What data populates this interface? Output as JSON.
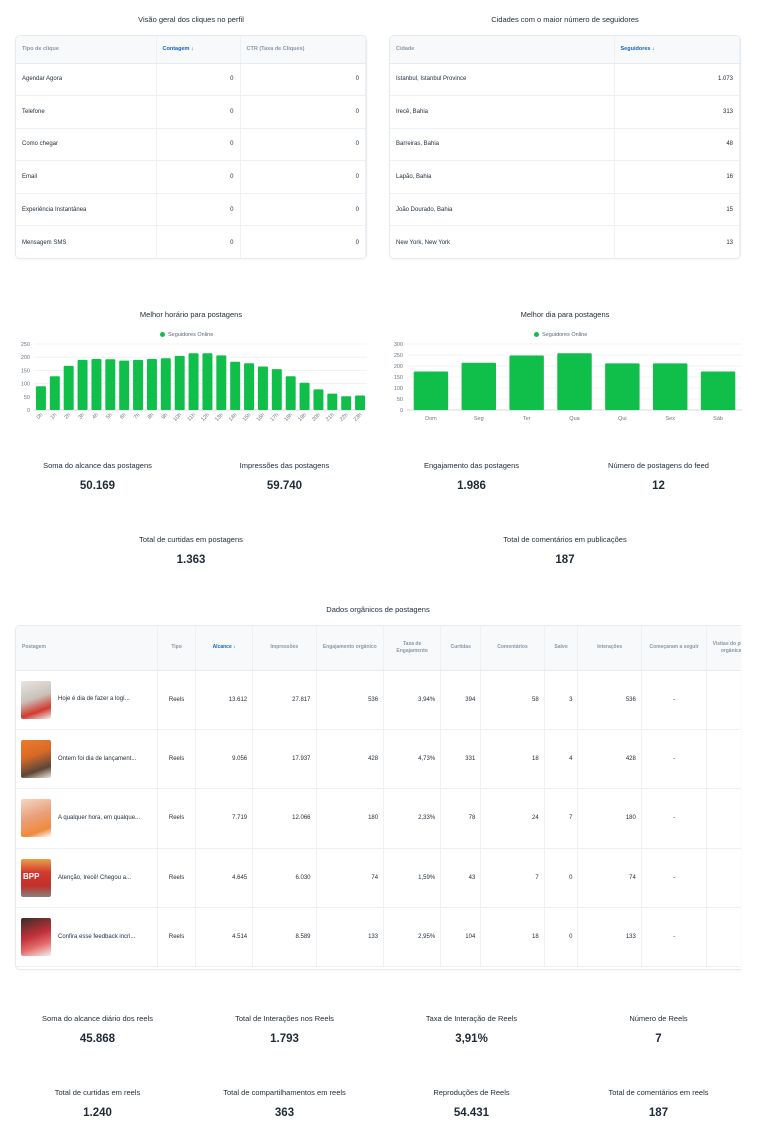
{
  "clicks": {
    "title": "Visão geral dos cliques no perfil",
    "columns": [
      "Tipo de clique",
      "Contagem ↓",
      "CTR (Taxa de Cliques)"
    ],
    "rows": [
      [
        "Agendar Agora",
        "0",
        "0"
      ],
      [
        "Telefone",
        "0",
        "0"
      ],
      [
        "Como chegar",
        "0",
        "0"
      ],
      [
        "Email",
        "0",
        "0"
      ],
      [
        "Experiência Instantânea",
        "0",
        "0"
      ],
      [
        "Mensagem SMS",
        "0",
        "0"
      ]
    ]
  },
  "cities": {
    "title": "Cidades com o maior número de seguidores",
    "columns": [
      "Cidade",
      "Seguidores ↓"
    ],
    "rows": [
      [
        "Istanbul, Istanbul Province",
        "1.073"
      ],
      [
        "Irecê, Bahia",
        "313"
      ],
      [
        "Barreiras, Bahia",
        "48"
      ],
      [
        "Lapão, Bahia",
        "16"
      ],
      [
        "João Dourado, Bahia",
        "15"
      ],
      [
        "New York, New York",
        "13"
      ]
    ]
  },
  "chart_data": [
    {
      "type": "bar",
      "title": "Melhor horário para postagens",
      "legend": "Seguidores Online",
      "color": "#0fbf49",
      "categories": [
        "0h",
        "1h",
        "2h",
        "3h",
        "4h",
        "5h",
        "6h",
        "7h",
        "8h",
        "9h",
        "10h",
        "11h",
        "12h",
        "13h",
        "14h",
        "15h",
        "16h",
        "17h",
        "18h",
        "19h",
        "20h",
        "21h",
        "22h",
        "23h"
      ],
      "values": [
        90,
        128,
        167,
        190,
        193,
        192,
        187,
        190,
        193,
        196,
        205,
        215,
        215,
        207,
        183,
        177,
        165,
        155,
        128,
        103,
        78,
        62,
        52,
        55
      ],
      "yticks": [
        0,
        50,
        100,
        150,
        200,
        250
      ],
      "ylim": [
        0,
        250
      ]
    },
    {
      "type": "bar",
      "title": "Melhor dia para postagens",
      "legend": "Seguidores Online",
      "color": "#0fbf49",
      "categories": [
        "Dom",
        "Seg",
        "Ter",
        "Qua",
        "Qui",
        "Sex",
        "Sáb"
      ],
      "values": [
        175,
        215,
        248,
        258,
        212,
        212,
        175
      ],
      "yticks": [
        0,
        50,
        100,
        150,
        200,
        250,
        300
      ],
      "ylim": [
        0,
        300
      ]
    }
  ],
  "metrics_row1": [
    {
      "label": "Soma do alcance das postagens",
      "value": "50.169"
    },
    {
      "label": "Impressões das postagens",
      "value": "59.740"
    },
    {
      "label": "Engajamento das postagens",
      "value": "1.986"
    },
    {
      "label": "Número de postagens do feed",
      "value": "12"
    }
  ],
  "metrics_row2": [
    {
      "label": "Total de curtidas em postagens",
      "value": "1.363"
    },
    {
      "label": "Total de comentários em publicações",
      "value": "187"
    }
  ],
  "posts": {
    "title": "Dados orgânicos de postagens",
    "columns": [
      "Postagem",
      "Tipo",
      "Alcance ↓",
      "Impressões",
      "Engajamento orgânico",
      "Taxa de Engajamento",
      "Curtidas",
      "Comentários",
      "Salvo",
      "Interações",
      "Começaram a seguir",
      "Visitas do perfil orgânica"
    ],
    "rows": [
      {
        "text": "Hoje é dia de fazer a logí...",
        "tipo": "Reels",
        "alcance": "13.612",
        "impressoes": "27.817",
        "engajamento": "536",
        "taxa": "3,94%",
        "curtidas": "394",
        "comentarios": "58",
        "salvo": "3",
        "interacoes": "536",
        "seguir": "-",
        "visitas": ""
      },
      {
        "text": "Ontem foi dia de lançament...",
        "tipo": "Reels",
        "alcance": "9.056",
        "impressoes": "17.937",
        "engajamento": "428",
        "taxa": "4,73%",
        "curtidas": "331",
        "comentarios": "18",
        "salvo": "4",
        "interacoes": "428",
        "seguir": "-",
        "visitas": ""
      },
      {
        "text": "A qualquer hora, em qualque...",
        "tipo": "Reels",
        "alcance": "7.719",
        "impressoes": "12.066",
        "engajamento": "180",
        "taxa": "2,33%",
        "curtidas": "78",
        "comentarios": "24",
        "salvo": "7",
        "interacoes": "180",
        "seguir": "-",
        "visitas": ""
      },
      {
        "text": "Atenção, Irecê! Chegou a...",
        "tipo": "Reels",
        "alcance": "4.645",
        "impressoes": "6.030",
        "engajamento": "74",
        "taxa": "1,59%",
        "curtidas": "43",
        "comentarios": "7",
        "salvo": "0",
        "interacoes": "74",
        "seguir": "-",
        "visitas": ""
      },
      {
        "text": "Confira esse feedback incri...",
        "tipo": "Reels",
        "alcance": "4.514",
        "impressoes": "8.589",
        "engajamento": "133",
        "taxa": "2,95%",
        "curtidas": "104",
        "comentarios": "18",
        "salvo": "0",
        "interacoes": "133",
        "seguir": "-",
        "visitas": ""
      }
    ],
    "thumb_texts": [
      "",
      "",
      "",
      "BPP",
      ""
    ]
  },
  "metrics_row3": [
    {
      "label": "Soma do alcance diário dos reels",
      "value": "45.868"
    },
    {
      "label": "Total de Interações nos Reels",
      "value": "1.793"
    },
    {
      "label": "Taxa de Interação de Reels",
      "value": "3,91%"
    },
    {
      "label": "Número de Reels",
      "value": "7"
    }
  ],
  "metrics_row4": [
    {
      "label": "Total de curtidas em reels",
      "value": "1.240"
    },
    {
      "label": "Total de compartilhamentos em reels",
      "value": "363"
    },
    {
      "label": "Reproduções de Reels",
      "value": "54.431"
    },
    {
      "label": "Total de comentários em reels",
      "value": "187"
    }
  ]
}
